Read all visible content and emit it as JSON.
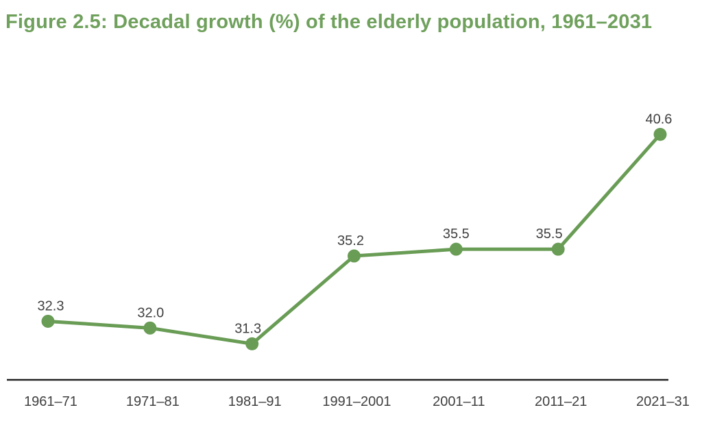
{
  "figure": {
    "title": "Figure 2.5: Decadal growth (%) of the elderly population, 1961–2031"
  },
  "chart_data": {
    "type": "line",
    "title": "Figure 2.5: Decadal growth (%) of the elderly population, 1961–2031",
    "categories": [
      "1961–71",
      "1971–81",
      "1981–91",
      "1991–2001",
      "2001–11",
      "2011–21",
      "2021–31"
    ],
    "values": [
      32.3,
      32.0,
      31.3,
      35.2,
      35.5,
      35.5,
      40.6
    ],
    "value_labels": [
      "32.3",
      "32.0",
      "31.3",
      "35.2",
      "35.5",
      "35.5",
      "40.6"
    ],
    "xlabel": "",
    "ylabel": "",
    "ylim": [
      29.7,
      42.5
    ],
    "grid": false,
    "legend": "none",
    "marker_shape": "circle",
    "colors": {
      "line": "#699c55",
      "marker": "#699c55",
      "title": "#6fa05c",
      "data_label": "#404040",
      "axis_label": "#3f3f3f",
      "axis_line": "#222222",
      "background": "#ffffff"
    }
  }
}
